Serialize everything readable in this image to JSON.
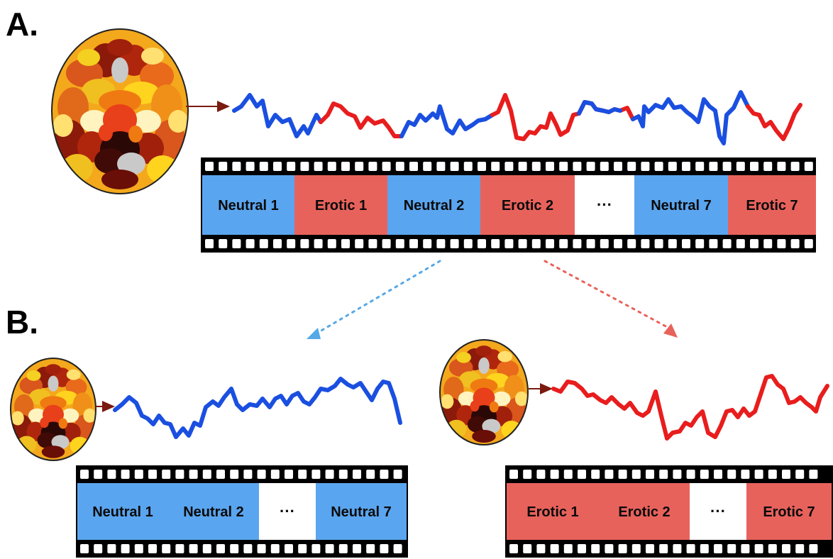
{
  "panels": {
    "a_label": "A.",
    "b_label": "B."
  },
  "colors": {
    "neutral": "#5aa5ef",
    "erotic": "#e8625c",
    "neutral_signal": "#1a4fe0",
    "erotic_signal": "#e81d1d",
    "arrow": "#7a1a10",
    "neutral_dotted": "#56a8e6",
    "erotic_dotted": "#e8625c"
  },
  "strip_a": {
    "segments": [
      {
        "label": "Neutral 1",
        "kind": "neutral"
      },
      {
        "label": "Erotic 1",
        "kind": "erotic"
      },
      {
        "label": "Neutral 2",
        "kind": "neutral"
      },
      {
        "label": "Erotic 2",
        "kind": "erotic"
      },
      {
        "label": "···",
        "kind": "gap"
      },
      {
        "label": "Neutral 7",
        "kind": "neutral"
      },
      {
        "label": "Erotic 7",
        "kind": "erotic"
      }
    ]
  },
  "strip_b_neutral": {
    "segments": [
      {
        "label": "Neutral 1",
        "kind": "neutral"
      },
      {
        "label": "Neutral 2",
        "kind": "neutral"
      },
      {
        "label": "···",
        "kind": "gap"
      },
      {
        "label": "Neutral 7",
        "kind": "neutral"
      }
    ]
  },
  "strip_b_erotic": {
    "segments": [
      {
        "label": "Erotic 1",
        "kind": "erotic"
      },
      {
        "label": "Erotic 2",
        "kind": "erotic"
      },
      {
        "label": "···",
        "kind": "gap"
      },
      {
        "label": "Erotic 7",
        "kind": "erotic"
      }
    ]
  },
  "brain": {
    "icon": "brain-parcellation-icon"
  }
}
